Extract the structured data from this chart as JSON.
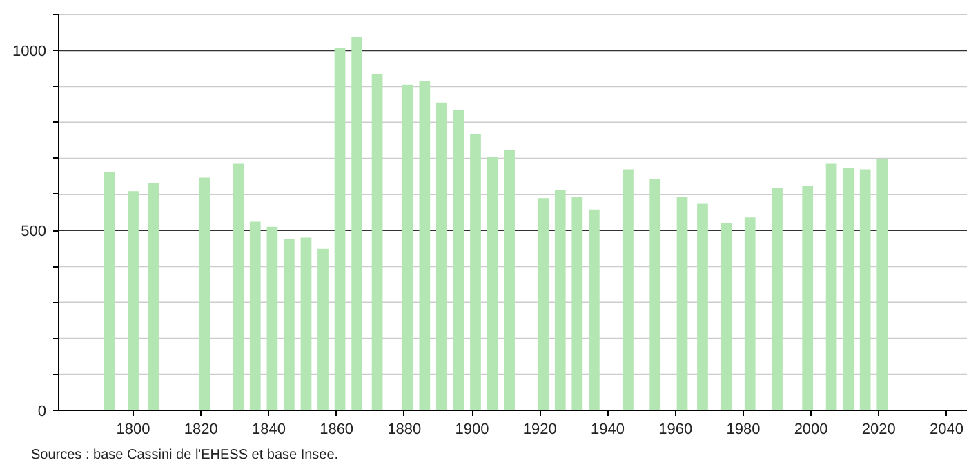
{
  "chart_data": {
    "type": "bar",
    "color": "#b3e6b3",
    "x": [
      1793,
      1800,
      1806,
      1821,
      1831,
      1836,
      1841,
      1846,
      1851,
      1856,
      1861,
      1866,
      1872,
      1881,
      1886,
      1891,
      1896,
      1901,
      1906,
      1911,
      1921,
      1926,
      1931,
      1936,
      1946,
      1954,
      1962,
      1968,
      1975,
      1982,
      1990,
      1999,
      2006,
      2011,
      2016,
      2021
    ],
    "values": [
      662,
      609,
      632,
      647,
      685,
      524,
      510,
      476,
      480,
      449,
      1006,
      1038,
      935,
      905,
      914,
      855,
      834,
      768,
      704,
      723,
      590,
      612,
      594,
      558,
      670,
      642,
      594,
      574,
      520,
      536,
      617,
      624,
      685,
      673,
      670,
      698
    ],
    "xlim": [
      1778,
      2046
    ],
    "xticks": [
      1800,
      1820,
      1840,
      1860,
      1880,
      1900,
      1920,
      1940,
      1960,
      1980,
      2000,
      2020,
      2040
    ],
    "ylim": [
      0,
      1100
    ],
    "yticks": [
      0,
      {
        "value": 100,
        "label": null
      },
      {
        "value": 200,
        "label": null
      },
      {
        "value": 300,
        "label": null
      },
      {
        "value": 400,
        "label": null
      },
      500,
      {
        "value": 600,
        "label": null
      },
      {
        "value": 700,
        "label": null
      },
      {
        "value": 800,
        "label": null
      },
      {
        "value": 900,
        "label": null
      },
      1000,
      {
        "value": 1100,
        "label": null
      }
    ],
    "grid": "y",
    "annotations": [
      "Sources : base Cassini de l'EHESS et base Insee."
    ]
  }
}
